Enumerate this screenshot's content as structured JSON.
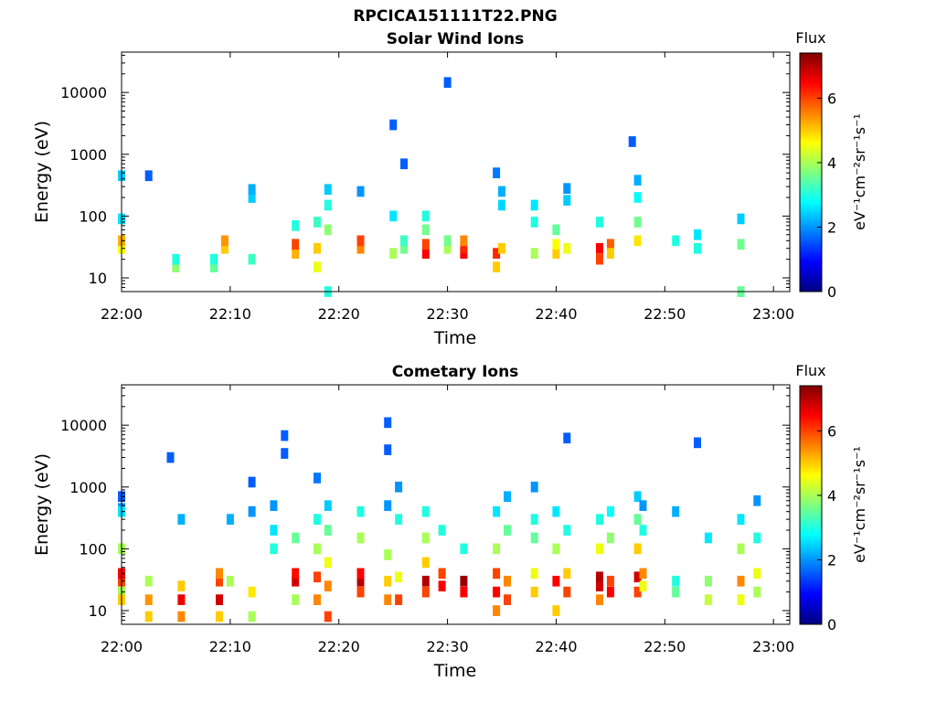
{
  "figure": {
    "filename": "RPCICA151111T22.PNG"
  },
  "colors": {
    "colormap": [
      "#00007f",
      "#0000ff",
      "#0080ff",
      "#00ffff",
      "#80ff80",
      "#ffff00",
      "#ff8000",
      "#ff0000",
      "#7f0000"
    ],
    "empty_background": "#ffffff"
  },
  "chart_data": [
    {
      "type": "heatmap",
      "title": "Solar Wind Ions",
      "xlabel": "Time",
      "ylabel": "Energy (eV)",
      "y_scale": "log",
      "ylim": [
        6,
        45000
      ],
      "xlim": [
        "22:00",
        "23:01:30"
      ],
      "x_ticks": [
        "22:00",
        "22:10",
        "22:20",
        "22:30",
        "22:40",
        "22:50",
        "23:00"
      ],
      "y_ticks": [
        10,
        100,
        1000,
        10000
      ],
      "colorbar": {
        "label": "Flux",
        "unit": "eV⁻¹cm⁻²sr⁻¹s⁻¹",
        "range": [
          0,
          7.4
        ],
        "ticks": [
          0,
          2,
          4,
          6
        ]
      },
      "columns": [
        {
          "time": "22:00",
          "cells": [
            [
              30,
              3.2
            ],
            [
              450,
              2.4
            ]
          ]
        },
        {
          "time": "22:02.5",
          "cells": [
            [
              450,
              1.6
            ]
          ]
        },
        {
          "time": "22:05",
          "cells": [
            [
              15,
              3.8
            ],
            [
              20,
              3.0
            ]
          ]
        },
        {
          "time": "22:08.5",
          "cells": [
            [
              15,
              3.5
            ],
            [
              20,
              3.0
            ]
          ]
        },
        {
          "time": "22:09.5",
          "cells": [
            [
              30,
              5.0
            ],
            [
              40,
              5.4
            ]
          ]
        },
        {
          "time": "22:12",
          "cells": [
            [
              20,
              3.2
            ],
            [
              200,
              2.4
            ],
            [
              270,
              2.2
            ]
          ]
        },
        {
          "time": "22:16",
          "cells": [
            [
              25,
              5.2
            ],
            [
              35,
              6.0
            ],
            [
              70,
              3.0
            ]
          ]
        },
        {
          "time": "22:18",
          "cells": [
            [
              15,
              4.5
            ],
            [
              30,
              5.0
            ],
            [
              80,
              3.2
            ]
          ]
        },
        {
          "time": "22:19",
          "cells": [
            [
              6,
              3.0
            ],
            [
              60,
              3.8
            ],
            [
              150,
              3.0
            ],
            [
              270,
              2.4
            ]
          ]
        },
        {
          "time": "22:22",
          "cells": [
            [
              30,
              5.5
            ],
            [
              40,
              6.0
            ],
            [
              250,
              2.0
            ]
          ]
        },
        {
          "time": "22:25",
          "cells": [
            [
              25,
              4.0
            ],
            [
              100,
              2.6
            ],
            [
              3000,
              1.6
            ]
          ]
        },
        {
          "time": "22:26",
          "cells": [
            [
              30,
              3.6
            ],
            [
              40,
              3.2
            ],
            [
              700,
              1.6
            ]
          ]
        },
        {
          "time": "22:28",
          "cells": [
            [
              25,
              6.5
            ],
            [
              35,
              6.0
            ],
            [
              60,
              3.6
            ],
            [
              100,
              3.0
            ]
          ]
        },
        {
          "time": "22:30",
          "cells": [
            [
              30,
              4.0
            ],
            [
              40,
              3.6
            ],
            [
              14500,
              1.6
            ]
          ]
        },
        {
          "time": "22:31.5",
          "cells": [
            [
              25,
              6.5
            ],
            [
              30,
              6.2
            ],
            [
              40,
              5.5
            ]
          ]
        },
        {
          "time": "22:34.5",
          "cells": [
            [
              15,
              5.0
            ],
            [
              25,
              6.2
            ],
            [
              500,
              1.8
            ]
          ]
        },
        {
          "time": "22:35",
          "cells": [
            [
              30,
              5.0
            ],
            [
              150,
              2.5
            ],
            [
              250,
              2.2
            ]
          ]
        },
        {
          "time": "22:38",
          "cells": [
            [
              25,
              4.0
            ],
            [
              80,
              3.0
            ],
            [
              150,
              2.6
            ]
          ]
        },
        {
          "time": "22:40",
          "cells": [
            [
              25,
              5.0
            ],
            [
              35,
              4.6
            ],
            [
              60,
              3.5
            ]
          ]
        },
        {
          "time": "22:41",
          "cells": [
            [
              30,
              4.5
            ],
            [
              180,
              2.4
            ],
            [
              280,
              2.0
            ]
          ]
        },
        {
          "time": "22:44",
          "cells": [
            [
              20,
              6.0
            ],
            [
              30,
              6.5
            ],
            [
              80,
              3.0
            ]
          ]
        },
        {
          "time": "22:45",
          "cells": [
            [
              35,
              5.8
            ],
            [
              25,
              5.0
            ]
          ]
        },
        {
          "time": "22:47",
          "cells": [
            [
              1600,
              1.6
            ]
          ]
        },
        {
          "time": "22:47.5",
          "cells": [
            [
              40,
              4.8
            ],
            [
              80,
              3.6
            ],
            [
              200,
              2.8
            ],
            [
              380,
              2.2
            ]
          ]
        },
        {
          "time": "22:51",
          "cells": [
            [
              40,
              3.0
            ]
          ]
        },
        {
          "time": "22:53",
          "cells": [
            [
              30,
              3.0
            ],
            [
              50,
              2.6
            ]
          ]
        },
        {
          "time": "22:57",
          "cells": [
            [
              6,
              3.5
            ],
            [
              35,
              3.6
            ],
            [
              90,
              2.4
            ]
          ]
        },
        {
          "time": "23:00",
          "cells": [
            [
              30,
              4.6
            ],
            [
              40,
              5.2
            ],
            [
              90,
              2.6
            ]
          ]
        }
      ]
    },
    {
      "type": "heatmap",
      "title": "Cometary Ions",
      "xlabel": "Time",
      "ylabel": "Energy (eV)",
      "y_scale": "log",
      "ylim": [
        6,
        45000
      ],
      "xlim": [
        "22:00",
        "23:01:30"
      ],
      "x_ticks": [
        "22:00",
        "22:10",
        "22:20",
        "22:30",
        "22:40",
        "22:50",
        "23:00"
      ],
      "y_ticks": [
        10,
        100,
        1000,
        10000
      ],
      "colorbar": {
        "label": "Flux",
        "unit": "eV⁻¹cm⁻²sr⁻¹s⁻¹",
        "range": [
          0,
          7.4
        ],
        "ticks": [
          0,
          2,
          4,
          6
        ]
      },
      "columns": [
        {
          "time": "22:00",
          "cells": [
            [
              20,
              4.0
            ],
            [
              40,
              3.2
            ],
            [
              450,
              2.0
            ],
            [
              700,
              1.6
            ]
          ]
        },
        {
          "time": "22:02.5",
          "cells": [
            [
              8,
              5.0
            ],
            [
              15,
              5.4
            ],
            [
              30,
              4.0
            ]
          ]
        },
        {
          "time": "22:04.5",
          "cells": [
            [
              3000,
              1.6
            ]
          ]
        },
        {
          "time": "22:05.5",
          "cells": [
            [
              8,
              5.5
            ],
            [
              15,
              6.6
            ],
            [
              25,
              5.0
            ],
            [
              300,
              2.2
            ]
          ]
        },
        {
          "time": "22:09",
          "cells": [
            [
              8,
              5.0
            ],
            [
              15,
              6.8
            ],
            [
              30,
              6.0
            ],
            [
              40,
              5.5
            ]
          ]
        },
        {
          "time": "22:10",
          "cells": [
            [
              30,
              4.0
            ],
            [
              300,
              2.2
            ]
          ]
        },
        {
          "time": "22:12",
          "cells": [
            [
              8,
              4.0
            ],
            [
              20,
              4.8
            ],
            [
              400,
              2.0
            ],
            [
              1200,
              1.6
            ]
          ]
        },
        {
          "time": "22:14",
          "cells": [
            [
              100,
              3.0
            ],
            [
              200,
              2.6
            ],
            [
              500,
              2.0
            ]
          ]
        },
        {
          "time": "22:15",
          "cells": [
            [
              3500,
              1.6
            ],
            [
              6800,
              1.6
            ]
          ]
        },
        {
          "time": "22:16",
          "cells": [
            [
              15,
              4.0
            ],
            [
              30,
              6.8
            ],
            [
              40,
              6.4
            ],
            [
              150,
              3.5
            ]
          ]
        },
        {
          "time": "22:18",
          "cells": [
            [
              15,
              5.5
            ],
            [
              35,
              6.0
            ],
            [
              100,
              4.0
            ],
            [
              300,
              3.0
            ],
            [
              1400,
              1.8
            ]
          ]
        },
        {
          "time": "22:19",
          "cells": [
            [
              8,
              6.0
            ],
            [
              25,
              5.5
            ],
            [
              60,
              4.5
            ],
            [
              200,
              3.5
            ],
            [
              500,
              2.4
            ]
          ]
        },
        {
          "time": "22:22",
          "cells": [
            [
              20,
              6.0
            ],
            [
              30,
              7.0
            ],
            [
              40,
              6.5
            ],
            [
              150,
              4.0
            ],
            [
              400,
              3.0
            ]
          ]
        },
        {
          "time": "22:24.5",
          "cells": [
            [
              15,
              5.5
            ],
            [
              30,
              5.0
            ],
            [
              80,
              4.0
            ],
            [
              500,
              2.0
            ],
            [
              4000,
              1.6
            ],
            [
              11000,
              1.6
            ]
          ]
        },
        {
          "time": "22:25.5",
          "cells": [
            [
              15,
              6.0
            ],
            [
              35,
              4.5
            ],
            [
              300,
              3.0
            ],
            [
              1000,
              2.0
            ]
          ]
        },
        {
          "time": "22:28",
          "cells": [
            [
              20,
              6.0
            ],
            [
              30,
              7.0
            ],
            [
              60,
              5.0
            ],
            [
              150,
              4.0
            ],
            [
              400,
              3.0
            ]
          ]
        },
        {
          "time": "22:29.5",
          "cells": [
            [
              25,
              6.5
            ],
            [
              40,
              6.0
            ],
            [
              200,
              3.0
            ]
          ]
        },
        {
          "time": "22:31.5",
          "cells": [
            [
              20,
              6.5
            ],
            [
              30,
              7.2
            ],
            [
              100,
              3.0
            ]
          ]
        },
        {
          "time": "22:34.5",
          "cells": [
            [
              10,
              5.5
            ],
            [
              20,
              6.5
            ],
            [
              40,
              6.0
            ],
            [
              100,
              4.0
            ],
            [
              400,
              2.6
            ]
          ]
        },
        {
          "time": "22:35.5",
          "cells": [
            [
              15,
              6.0
            ],
            [
              30,
              5.5
            ],
            [
              200,
              3.5
            ],
            [
              700,
              2.2
            ]
          ]
        },
        {
          "time": "22:38",
          "cells": [
            [
              20,
              5.0
            ],
            [
              40,
              4.5
            ],
            [
              150,
              3.5
            ],
            [
              300,
              3.0
            ],
            [
              1000,
              2.0
            ]
          ]
        },
        {
          "time": "22:40",
          "cells": [
            [
              10,
              5.0
            ],
            [
              30,
              6.5
            ],
            [
              100,
              4.0
            ],
            [
              400,
              2.6
            ]
          ]
        },
        {
          "time": "22:41",
          "cells": [
            [
              20,
              6.0
            ],
            [
              40,
              5.0
            ],
            [
              200,
              3.0
            ],
            [
              6200,
              1.6
            ]
          ]
        },
        {
          "time": "22:44",
          "cells": [
            [
              15,
              5.5
            ],
            [
              25,
              6.8
            ],
            [
              35,
              7.0
            ],
            [
              100,
              4.5
            ],
            [
              300,
              3.0
            ]
          ]
        },
        {
          "time": "22:45",
          "cells": [
            [
              20,
              6.5
            ],
            [
              30,
              6.0
            ],
            [
              150,
              3.8
            ],
            [
              400,
              2.8
            ]
          ]
        },
        {
          "time": "22:47.5",
          "cells": [
            [
              20,
              6.0
            ],
            [
              35,
              6.8
            ],
            [
              100,
              5.0
            ],
            [
              300,
              3.5
            ],
            [
              700,
              2.4
            ]
          ]
        },
        {
          "time": "22:48",
          "cells": [
            [
              25,
              4.5
            ],
            [
              40,
              5.5
            ],
            [
              200,
              3.0
            ],
            [
              500,
              2.0
            ]
          ]
        },
        {
          "time": "22:51",
          "cells": [
            [
              20,
              3.5
            ],
            [
              30,
              3.0
            ],
            [
              400,
              2.2
            ]
          ]
        },
        {
          "time": "22:53",
          "cells": [
            [
              5200,
              1.6
            ]
          ]
        },
        {
          "time": "22:54",
          "cells": [
            [
              15,
              4.2
            ],
            [
              30,
              3.8
            ],
            [
              150,
              2.6
            ]
          ]
        },
        {
          "time": "22:57",
          "cells": [
            [
              15,
              4.5
            ],
            [
              30,
              5.5
            ],
            [
              100,
              4.0
            ],
            [
              300,
              2.6
            ]
          ]
        },
        {
          "time": "22:58.5",
          "cells": [
            [
              20,
              4.0
            ],
            [
              40,
              4.5
            ],
            [
              150,
              3.0
            ],
            [
              600,
              2.0
            ]
          ]
        },
        {
          "time": "23:00",
          "cells": [
            [
              15,
              5.0
            ],
            [
              30,
              6.0
            ],
            [
              40,
              6.5
            ],
            [
              100,
              4.0
            ],
            [
              400,
              2.6
            ]
          ]
        }
      ]
    }
  ]
}
